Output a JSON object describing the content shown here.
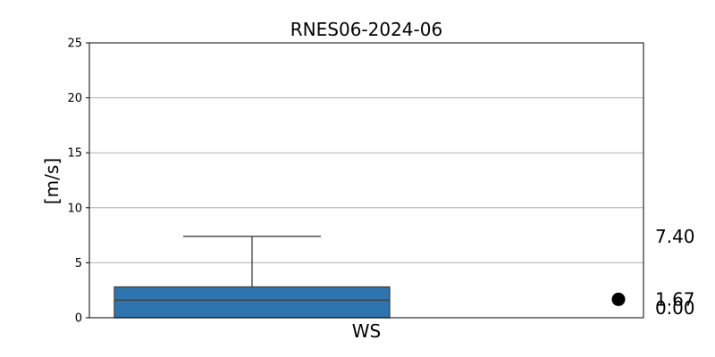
{
  "chart_data": {
    "type": "box",
    "title": "RNES06-2024-06",
    "xlabel": "",
    "ylabel": "[m/s]",
    "categories": [
      "WS"
    ],
    "ylim": [
      0,
      25
    ],
    "yticks": [
      0,
      5,
      10,
      15,
      20,
      25
    ],
    "grid": "horizontal",
    "series": [
      {
        "category": "WS",
        "whisker_low": 0.0,
        "q1": 0.0,
        "median": 1.6,
        "q3": 2.8,
        "whisker_high": 7.4,
        "color": "#2e75b0"
      }
    ],
    "marker": {
      "value": 1.67,
      "color": "#000000"
    },
    "side_labels": [
      "7.40",
      "1.67",
      "0.00"
    ]
  }
}
